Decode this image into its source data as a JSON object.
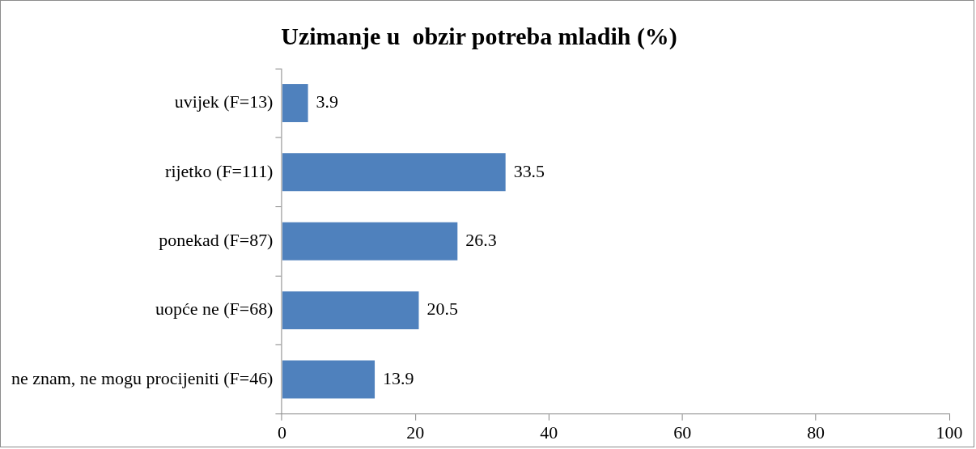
{
  "chart_data": {
    "type": "bar",
    "orientation": "horizontal",
    "title": "Uzimanje u  obzir potreba mladih (%)",
    "categories": [
      "uvijek (F=13)",
      "rijetko (F=111)",
      "ponekad (F=87)",
      "uopće ne (F=68)",
      "ne znam, ne mogu procijeniti (F=46)"
    ],
    "values": [
      3.9,
      33.5,
      26.3,
      20.5,
      13.9
    ],
    "color": "#4f81bd",
    "xlim": [
      0,
      100
    ],
    "xticks": [
      0,
      20,
      40,
      60,
      80,
      100
    ],
    "grid": false,
    "data_labels": true,
    "legend": false
  }
}
